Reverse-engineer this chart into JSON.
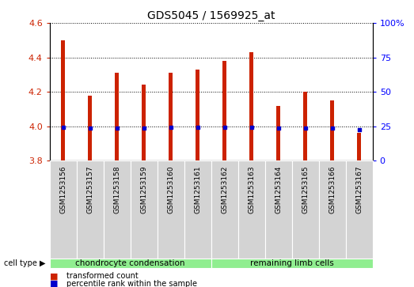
{
  "title": "GDS5045 / 1569925_at",
  "samples": [
    "GSM1253156",
    "GSM1253157",
    "GSM1253158",
    "GSM1253159",
    "GSM1253160",
    "GSM1253161",
    "GSM1253162",
    "GSM1253163",
    "GSM1253164",
    "GSM1253165",
    "GSM1253166",
    "GSM1253167"
  ],
  "transformed_count": [
    4.5,
    4.18,
    4.31,
    4.24,
    4.31,
    4.33,
    4.38,
    4.43,
    4.12,
    4.2,
    4.15,
    3.96
  ],
  "percentile_rank": [
    24.5,
    23.5,
    23.8,
    23.8,
    24.2,
    24.0,
    24.0,
    24.5,
    23.7,
    23.8,
    23.8,
    22.5
  ],
  "ymin": 3.8,
  "ymax": 4.6,
  "yticks_left": [
    3.8,
    4.0,
    4.2,
    4.4,
    4.6
  ],
  "yticks_right": [
    0,
    25,
    50,
    75,
    100
  ],
  "bar_color": "#cc2200",
  "dot_color": "#0000cc",
  "group1_label": "chondrocyte condensation",
  "group2_label": "remaining limb cells",
  "group1_count": 6,
  "group2_count": 6,
  "cell_type_label": "cell type",
  "legend_count_label": "transformed count",
  "legend_percentile_label": "percentile rank within the sample",
  "sample_box_color": "#d3d3d3",
  "group_color": "#90ee90",
  "bar_width": 0.15,
  "bar_bottom": 3.8
}
